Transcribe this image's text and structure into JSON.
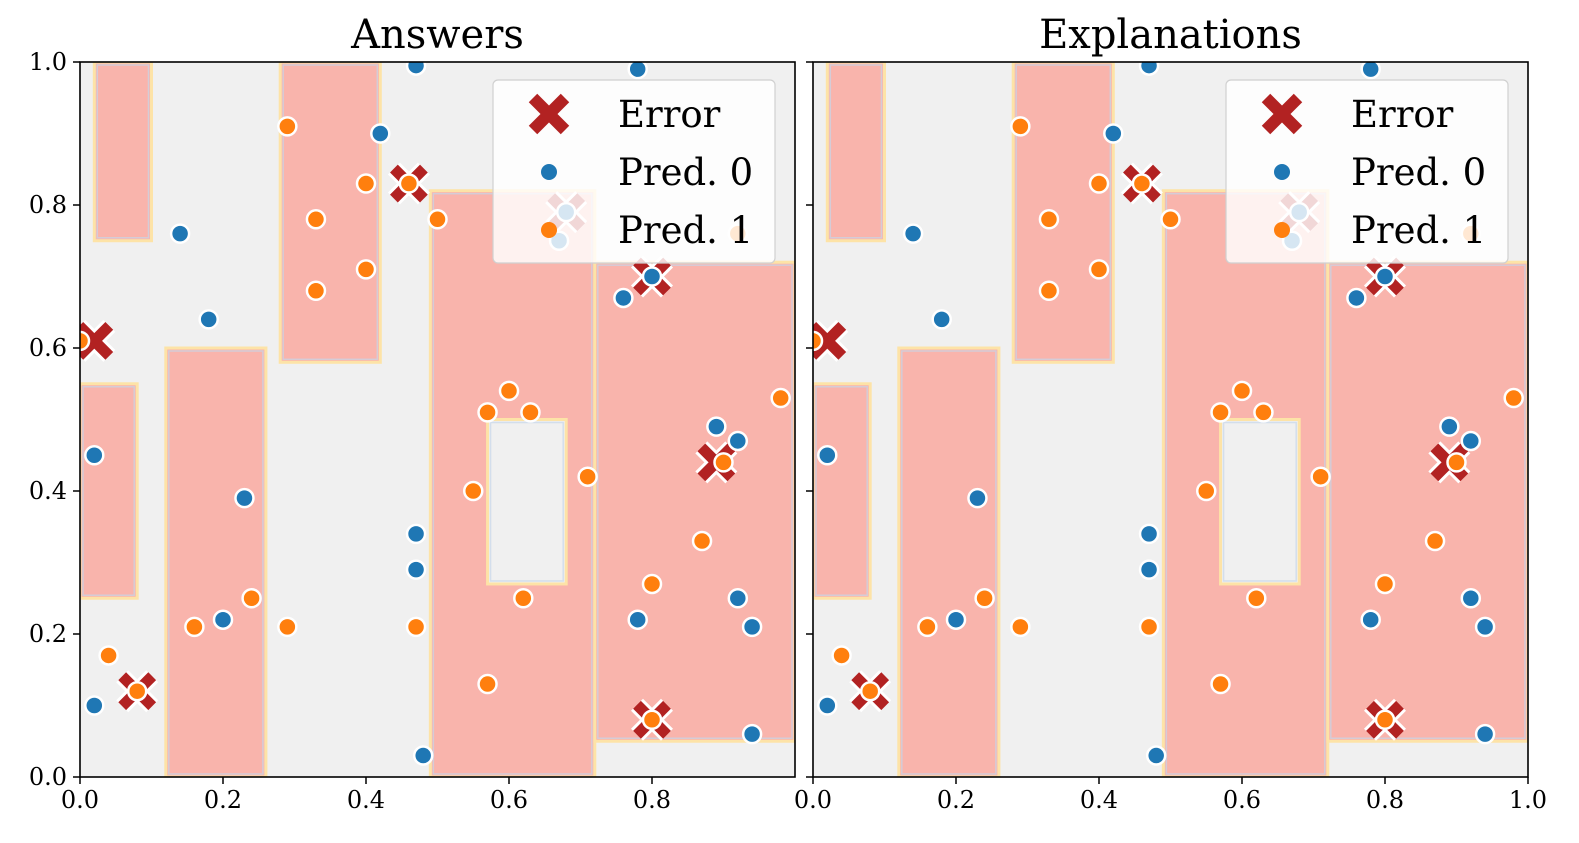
{
  "colors": {
    "background_class0": "#f0f0f0",
    "background_class1": "#f9b4ac",
    "pred0": "#1f77b4",
    "pred1": "#ff7f0e",
    "error": "#b22222",
    "boundary_outer": "#fde3a7",
    "boundary_inner": "#c6d6ea"
  },
  "chart_data": [
    {
      "type": "scatter",
      "title": "Answers",
      "xlim": [
        0.0,
        1.0
      ],
      "ylim": [
        0.0,
        1.0
      ],
      "x_ticks": [
        "0.0",
        "0.2",
        "0.4",
        "0.6",
        "0.8"
      ],
      "y_ticks": [
        "0.0",
        "0.2",
        "0.4",
        "0.6",
        "0.8",
        "1.0"
      ],
      "legend": {
        "placement": "top-right",
        "entries": [
          "Error",
          "Pred. 0",
          "Pred. 1"
        ]
      },
      "background_regions": [
        {
          "class": 1,
          "x": [
            0.02,
            0.1
          ],
          "y": [
            0.75,
            1.0
          ]
        },
        {
          "class": 1,
          "x": [
            0.28,
            0.42
          ],
          "y": [
            0.58,
            1.0
          ]
        },
        {
          "class": 1,
          "x": [
            0.49,
            0.72
          ],
          "y": [
            0.0,
            0.82
          ]
        },
        {
          "class": 1,
          "x": [
            0.72,
            1.0
          ],
          "y": [
            0.05,
            0.72
          ]
        },
        {
          "class": 1,
          "x": [
            0.12,
            0.26
          ],
          "y": [
            0.0,
            0.6
          ]
        },
        {
          "class": 1,
          "x": [
            0.0,
            0.08
          ],
          "y": [
            0.25,
            0.55
          ]
        },
        {
          "class": 0,
          "x": [
            0.57,
            0.68
          ],
          "y": [
            0.27,
            0.5
          ]
        }
      ],
      "series": [
        {
          "name": "Pred. 0",
          "points": [
            [
              0.02,
              0.1
            ],
            [
              0.02,
              0.45
            ],
            [
              0.14,
              0.76
            ],
            [
              0.18,
              0.64
            ],
            [
              0.2,
              0.22
            ],
            [
              0.23,
              0.39
            ],
            [
              0.42,
              0.9
            ],
            [
              0.47,
              0.995
            ],
            [
              0.47,
              0.34
            ],
            [
              0.47,
              0.29
            ],
            [
              0.48,
              0.03
            ],
            [
              0.76,
              0.67
            ],
            [
              0.78,
              0.22
            ],
            [
              0.8,
              0.7
            ],
            [
              0.78,
              0.99
            ],
            [
              0.89,
              0.49
            ],
            [
              0.92,
              0.47
            ],
            [
              0.92,
              0.25
            ],
            [
              0.94,
              0.21
            ],
            [
              0.94,
              0.06
            ],
            [
              0.68,
              0.79
            ],
            [
              0.67,
              0.75
            ]
          ]
        },
        {
          "name": "Pred. 1",
          "points": [
            [
              0.0,
              0.61
            ],
            [
              0.04,
              0.17
            ],
            [
              0.08,
              0.12
            ],
            [
              0.16,
              0.21
            ],
            [
              0.24,
              0.25
            ],
            [
              0.29,
              0.21
            ],
            [
              0.29,
              0.91
            ],
            [
              0.33,
              0.78
            ],
            [
              0.33,
              0.68
            ],
            [
              0.4,
              0.83
            ],
            [
              0.4,
              0.71
            ],
            [
              0.46,
              0.83
            ],
            [
              0.5,
              0.78
            ],
            [
              0.47,
              0.21
            ],
            [
              0.55,
              0.4
            ],
            [
              0.57,
              0.51
            ],
            [
              0.6,
              0.54
            ],
            [
              0.63,
              0.51
            ],
            [
              0.57,
              0.13
            ],
            [
              0.62,
              0.25
            ],
            [
              0.71,
              0.42
            ],
            [
              0.8,
              0.27
            ],
            [
              0.8,
              0.08
            ],
            [
              0.87,
              0.33
            ],
            [
              0.9,
              0.44
            ],
            [
              0.98,
              0.53
            ],
            [
              0.92,
              0.76
            ]
          ]
        },
        {
          "name": "Error",
          "points": [
            [
              0.02,
              0.61
            ],
            [
              0.08,
              0.12
            ],
            [
              0.46,
              0.83
            ],
            [
              0.68,
              0.79
            ],
            [
              0.8,
              0.7
            ],
            [
              0.89,
              0.44
            ],
            [
              0.8,
              0.08
            ]
          ]
        }
      ]
    },
    {
      "type": "scatter",
      "title": "Explanations",
      "xlim": [
        0.0,
        1.0
      ],
      "ylim": [
        0.0,
        1.0
      ],
      "x_ticks": [
        "0.0",
        "0.2",
        "0.4",
        "0.6",
        "0.8",
        "1.0"
      ],
      "y_ticks": [],
      "legend": {
        "placement": "top-right",
        "entries": [
          "Error",
          "Pred. 0",
          "Pred. 1"
        ]
      },
      "background_regions": [
        {
          "class": 1,
          "x": [
            0.02,
            0.1
          ],
          "y": [
            0.75,
            1.0
          ]
        },
        {
          "class": 1,
          "x": [
            0.28,
            0.42
          ],
          "y": [
            0.58,
            1.0
          ]
        },
        {
          "class": 1,
          "x": [
            0.49,
            0.72
          ],
          "y": [
            0.0,
            0.82
          ]
        },
        {
          "class": 1,
          "x": [
            0.72,
            1.0
          ],
          "y": [
            0.05,
            0.72
          ]
        },
        {
          "class": 1,
          "x": [
            0.12,
            0.26
          ],
          "y": [
            0.0,
            0.6
          ]
        },
        {
          "class": 1,
          "x": [
            0.0,
            0.08
          ],
          "y": [
            0.25,
            0.55
          ]
        },
        {
          "class": 0,
          "x": [
            0.57,
            0.68
          ],
          "y": [
            0.27,
            0.5
          ]
        }
      ],
      "series": [
        {
          "name": "Pred. 0",
          "points": [
            [
              0.02,
              0.1
            ],
            [
              0.02,
              0.45
            ],
            [
              0.14,
              0.76
            ],
            [
              0.18,
              0.64
            ],
            [
              0.2,
              0.22
            ],
            [
              0.23,
              0.39
            ],
            [
              0.42,
              0.9
            ],
            [
              0.47,
              0.995
            ],
            [
              0.47,
              0.34
            ],
            [
              0.47,
              0.29
            ],
            [
              0.48,
              0.03
            ],
            [
              0.76,
              0.67
            ],
            [
              0.78,
              0.22
            ],
            [
              0.8,
              0.7
            ],
            [
              0.78,
              0.99
            ],
            [
              0.89,
              0.49
            ],
            [
              0.92,
              0.47
            ],
            [
              0.92,
              0.25
            ],
            [
              0.94,
              0.21
            ],
            [
              0.94,
              0.06
            ],
            [
              0.68,
              0.79
            ],
            [
              0.67,
              0.75
            ]
          ]
        },
        {
          "name": "Pred. 1",
          "points": [
            [
              0.0,
              0.61
            ],
            [
              0.04,
              0.17
            ],
            [
              0.08,
              0.12
            ],
            [
              0.16,
              0.21
            ],
            [
              0.24,
              0.25
            ],
            [
              0.29,
              0.21
            ],
            [
              0.29,
              0.91
            ],
            [
              0.33,
              0.78
            ],
            [
              0.33,
              0.68
            ],
            [
              0.4,
              0.83
            ],
            [
              0.4,
              0.71
            ],
            [
              0.46,
              0.83
            ],
            [
              0.5,
              0.78
            ],
            [
              0.47,
              0.21
            ],
            [
              0.55,
              0.4
            ],
            [
              0.57,
              0.51
            ],
            [
              0.6,
              0.54
            ],
            [
              0.63,
              0.51
            ],
            [
              0.57,
              0.13
            ],
            [
              0.62,
              0.25
            ],
            [
              0.71,
              0.42
            ],
            [
              0.8,
              0.27
            ],
            [
              0.8,
              0.08
            ],
            [
              0.87,
              0.33
            ],
            [
              0.9,
              0.44
            ],
            [
              0.98,
              0.53
            ],
            [
              0.92,
              0.76
            ]
          ]
        },
        {
          "name": "Error",
          "points": [
            [
              0.02,
              0.61
            ],
            [
              0.08,
              0.12
            ],
            [
              0.46,
              0.83
            ],
            [
              0.68,
              0.79
            ],
            [
              0.8,
              0.7
            ],
            [
              0.89,
              0.44
            ],
            [
              0.8,
              0.08
            ]
          ]
        }
      ]
    }
  ]
}
